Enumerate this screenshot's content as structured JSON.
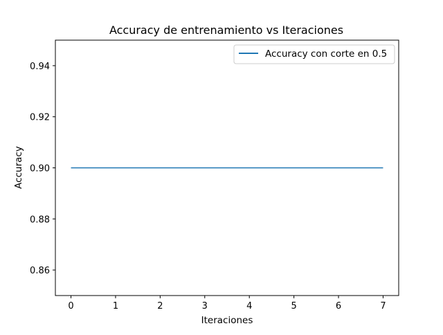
{
  "chart_data": {
    "type": "line",
    "title": "Accuracy de entrenamiento vs Iteraciones",
    "xlabel": "Iteraciones",
    "ylabel": "Accuracy",
    "xlim": [
      -0.35,
      7.35
    ],
    "ylim": [
      0.85,
      0.95
    ],
    "x_ticks": [
      0,
      1,
      2,
      3,
      4,
      5,
      6,
      7
    ],
    "x_tick_labels": [
      "0",
      "1",
      "2",
      "3",
      "4",
      "5",
      "6",
      "7"
    ],
    "y_ticks": [
      0.86,
      0.88,
      0.9,
      0.92,
      0.94
    ],
    "y_tick_labels": [
      "0.86",
      "0.88",
      "0.90",
      "0.92",
      "0.94"
    ],
    "grid": false,
    "legend_position": "top-right",
    "series": [
      {
        "name": "Accuracy con corte en 0.5",
        "color": "#1f77b4",
        "x": [
          0,
          1,
          2,
          3,
          4,
          5,
          6,
          7
        ],
        "y": [
          0.9,
          0.9,
          0.9,
          0.9,
          0.9,
          0.9,
          0.9,
          0.9
        ]
      }
    ]
  }
}
